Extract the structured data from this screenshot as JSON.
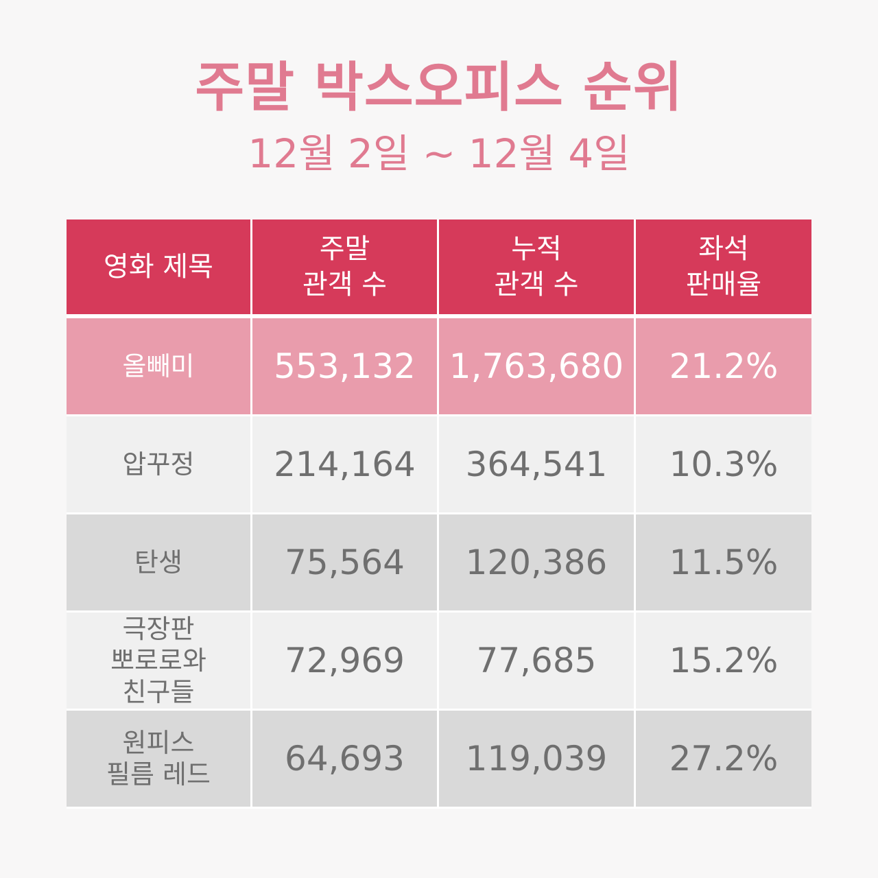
{
  "header": {
    "title": "주말 박스오피스 순위",
    "date_range": "12월 2일 ~ 12월 4일"
  },
  "table": {
    "columns": [
      [
        "영화 제목"
      ],
      [
        "주말",
        "관객 수"
      ],
      [
        "누적",
        "관객 수"
      ],
      [
        "좌석",
        "판매율"
      ]
    ],
    "rows": [
      {
        "title": [
          "올빼미"
        ],
        "weekend": "553,132",
        "total": "1,763,680",
        "seat_rate": "21.2%"
      },
      {
        "title": [
          "압꾸정"
        ],
        "weekend": "214,164",
        "total": "364,541",
        "seat_rate": "10.3%"
      },
      {
        "title": [
          "탄생"
        ],
        "weekend": "75,564",
        "total": "120,386",
        "seat_rate": "11.5%"
      },
      {
        "title": [
          "극장판",
          "뽀로로와",
          "친구들"
        ],
        "weekend": "72,969",
        "total": "77,685",
        "seat_rate": "15.2%"
      },
      {
        "title": [
          "원피스",
          "필름 레드"
        ],
        "weekend": "64,693",
        "total": "119,039",
        "seat_rate": "27.2%"
      }
    ]
  },
  "colors": {
    "title_pink": "#e07a90",
    "header_bg": "#d63a5a",
    "highlight_row_bg": "#e99cac",
    "light_row_bg": "#f0f0f0",
    "dark_row_bg": "#d9d9d9",
    "cell_text": "#6f6f6f"
  }
}
